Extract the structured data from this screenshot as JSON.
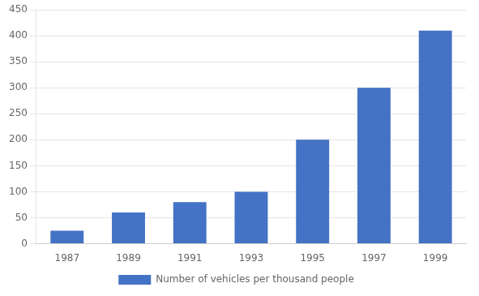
{
  "chart_data": {
    "type": "bar",
    "categories": [
      "1987",
      "1989",
      "1991",
      "1993",
      "1995",
      "1997",
      "1999"
    ],
    "series": [
      {
        "name": "Number of vehicles per thousand people",
        "color": "#4472C4",
        "values": [
          25,
          60,
          80,
          100,
          200,
          300,
          410
        ]
      }
    ],
    "ylim": [
      0,
      450
    ],
    "yticks": [
      0,
      50,
      100,
      150,
      200,
      250,
      300,
      350,
      400,
      450
    ],
    "grid": true,
    "legend": "bottom"
  }
}
